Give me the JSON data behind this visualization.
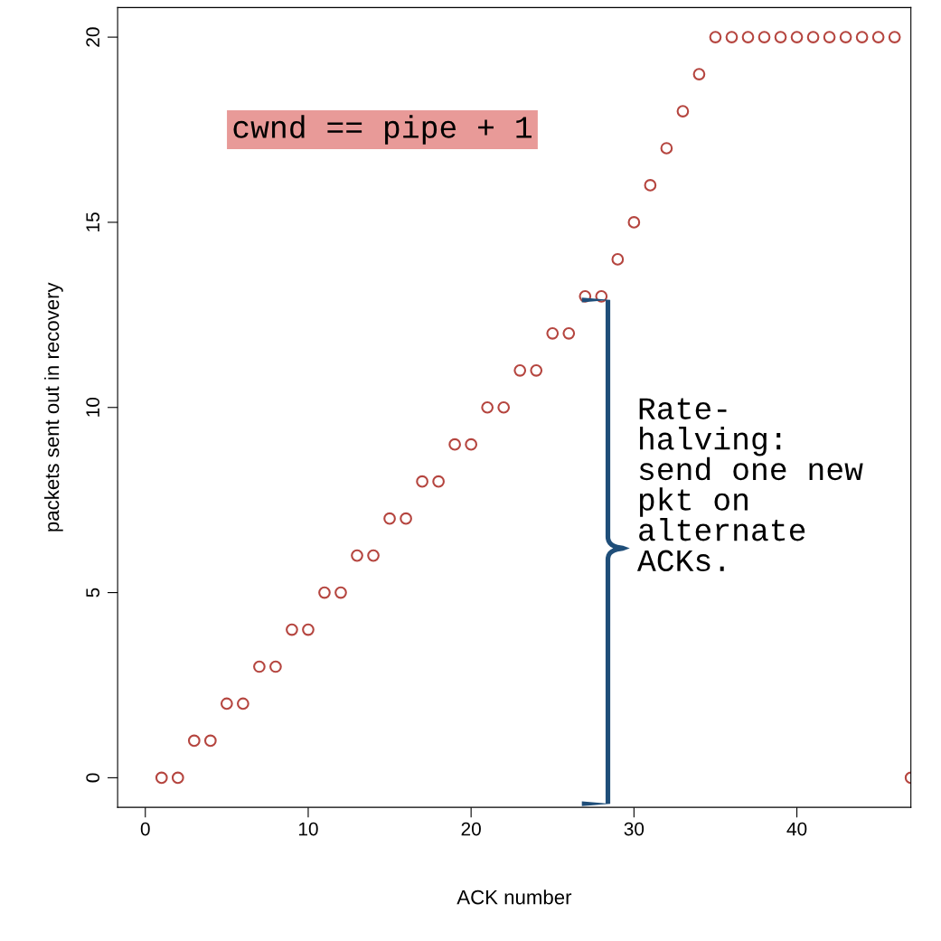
{
  "chart_data": {
    "type": "scatter",
    "xlabel": "ACK number",
    "ylabel": "packets sent out in recovery",
    "x": [
      1,
      2,
      3,
      4,
      5,
      6,
      7,
      8,
      9,
      10,
      11,
      12,
      13,
      14,
      15,
      16,
      17,
      18,
      19,
      20,
      21,
      22,
      23,
      24,
      25,
      26,
      27,
      28,
      29,
      30,
      31,
      32,
      33,
      34,
      35,
      36,
      37,
      38,
      39,
      40,
      41,
      42,
      43,
      44,
      45,
      46,
      47
    ],
    "series": [
      {
        "color": "#b5453f",
        "values": [
          0,
          0,
          1,
          1,
          2,
          2,
          3,
          3,
          4,
          4,
          5,
          5,
          6,
          6,
          7,
          7,
          8,
          8,
          9,
          9,
          10,
          10,
          11,
          11,
          12,
          12,
          13,
          13,
          14,
          15,
          16,
          17,
          18,
          19,
          20,
          20,
          20,
          20,
          20,
          20,
          20,
          20,
          20,
          20,
          20,
          20,
          0
        ]
      }
    ],
    "xlim": [
      -1.7,
      47
    ],
    "ylim": [
      -0.8,
      20.8
    ],
    "xticks": [
      0,
      10,
      20,
      30,
      40
    ],
    "yticks": [
      0,
      5,
      10,
      15,
      20
    ],
    "marker": "circle",
    "grid": false,
    "annotations": [
      "cwnd == pipe + 1",
      "Rate-\nhalving:\nsend one new\npkt on\nalternate\nACKs."
    ]
  }
}
